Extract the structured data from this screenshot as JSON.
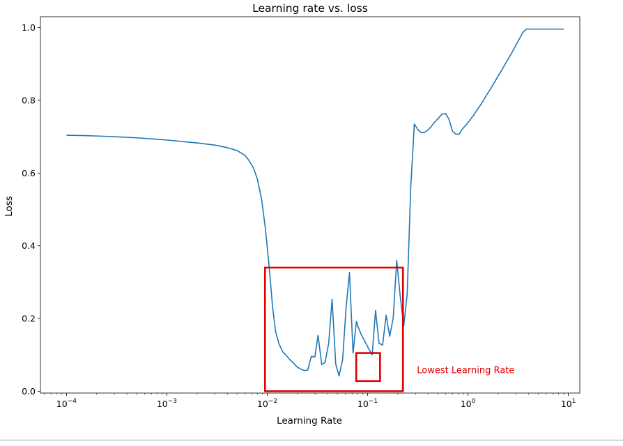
{
  "chart_data": {
    "type": "line",
    "title": "Learning rate vs. loss",
    "xlabel": "Learning Rate",
    "ylabel": "Loss",
    "x_scale": "log",
    "xlim": [
      5.5e-05,
      13
    ],
    "ylim": [
      -0.005,
      1.03
    ],
    "x_ticks": [
      {
        "value": 0.0001,
        "base": "10",
        "exp": "−4"
      },
      {
        "value": 0.001,
        "base": "10",
        "exp": "−3"
      },
      {
        "value": 0.01,
        "base": "10",
        "exp": "−2"
      },
      {
        "value": 0.1,
        "base": "10",
        "exp": "−1"
      },
      {
        "value": 1,
        "base": "10",
        "exp": "0"
      },
      {
        "value": 10,
        "base": "10",
        "exp": "1"
      }
    ],
    "y_ticks": [
      {
        "value": 0.0,
        "label": "0.0"
      },
      {
        "value": 0.2,
        "label": "0.2"
      },
      {
        "value": 0.4,
        "label": "0.4"
      },
      {
        "value": 0.6,
        "label": "0.6"
      },
      {
        "value": 0.8,
        "label": "0.8"
      },
      {
        "value": 1.0,
        "label": "1.0"
      }
    ],
    "grid": false,
    "line_color": "#1f77b4",
    "series": [
      {
        "x": [
          0.0001,
          0.00015,
          0.0002,
          0.0003,
          0.0005,
          0.0007,
          0.001,
          0.0015,
          0.002,
          0.003,
          0.004,
          0.005,
          0.006,
          0.0066,
          0.0073,
          0.008,
          0.0088,
          0.0096,
          0.0105,
          0.0113,
          0.0121,
          0.0131,
          0.0143,
          0.0155,
          0.0168,
          0.0183,
          0.0198,
          0.0215,
          0.0234,
          0.0253,
          0.0275,
          0.0298,
          0.0321,
          0.0349,
          0.0377,
          0.041,
          0.0443,
          0.0481,
          0.052,
          0.0564,
          0.061,
          0.066,
          0.0716,
          0.0774,
          0.0812,
          0.0867,
          0.094,
          0.102,
          0.111,
          0.12,
          0.13,
          0.141,
          0.153,
          0.166,
          0.18,
          0.195,
          0.211,
          0.229,
          0.248,
          0.269,
          0.292,
          0.316,
          0.343,
          0.37,
          0.401,
          0.433,
          0.469,
          0.508,
          0.55,
          0.597,
          0.647,
          0.701,
          0.76,
          0.817,
          0.838,
          0.873,
          0.96,
          1.04,
          1.13,
          1.22,
          1.33,
          1.44,
          1.56,
          1.7,
          1.84,
          1.99,
          2.16,
          2.34,
          2.54,
          2.76,
          2.99,
          3.25,
          3.52,
          3.82,
          4.14,
          4.5,
          4.9,
          5.3,
          5.75,
          6.24,
          6.77,
          7.35,
          7.98,
          8.66,
          9.0
        ],
        "y": [
          0.704,
          0.703,
          0.702,
          0.7,
          0.697,
          0.694,
          0.691,
          0.686,
          0.683,
          0.677,
          0.67,
          0.662,
          0.649,
          0.634,
          0.614,
          0.582,
          0.527,
          0.446,
          0.336,
          0.232,
          0.165,
          0.13,
          0.108,
          0.098,
          0.087,
          0.077,
          0.067,
          0.061,
          0.057,
          0.058,
          0.096,
          0.094,
          0.154,
          0.073,
          0.079,
          0.133,
          0.253,
          0.075,
          0.042,
          0.087,
          0.229,
          0.327,
          0.105,
          0.192,
          0.174,
          0.155,
          0.137,
          0.118,
          0.1,
          0.222,
          0.132,
          0.127,
          0.209,
          0.151,
          0.202,
          0.36,
          0.263,
          0.179,
          0.268,
          0.56,
          0.735,
          0.72,
          0.711,
          0.712,
          0.719,
          0.729,
          0.741,
          0.751,
          0.762,
          0.764,
          0.748,
          0.715,
          0.707,
          0.707,
          0.712,
          0.72,
          0.733,
          0.745,
          0.758,
          0.772,
          0.787,
          0.802,
          0.818,
          0.834,
          0.85,
          0.866,
          0.882,
          0.899,
          0.916,
          0.933,
          0.951,
          0.969,
          0.987,
          0.996,
          0.996,
          0.996,
          0.996,
          0.996,
          0.996,
          0.996,
          0.996,
          0.996,
          0.996,
          0.996,
          0.996
        ]
      }
    ],
    "annotations": [
      {
        "shape": "rect",
        "x0": 0.0095,
        "x1": 0.225,
        "y0": 0.0,
        "y1": 0.34,
        "color": "#e00000"
      },
      {
        "shape": "rect",
        "x0": 0.077,
        "x1": 0.133,
        "y0": 0.028,
        "y1": 0.105,
        "color": "#e00000"
      },
      {
        "shape": "text",
        "text": "Lowest Learning Rate",
        "x": 0.31,
        "y": 0.05,
        "color": "#e00000"
      }
    ]
  }
}
